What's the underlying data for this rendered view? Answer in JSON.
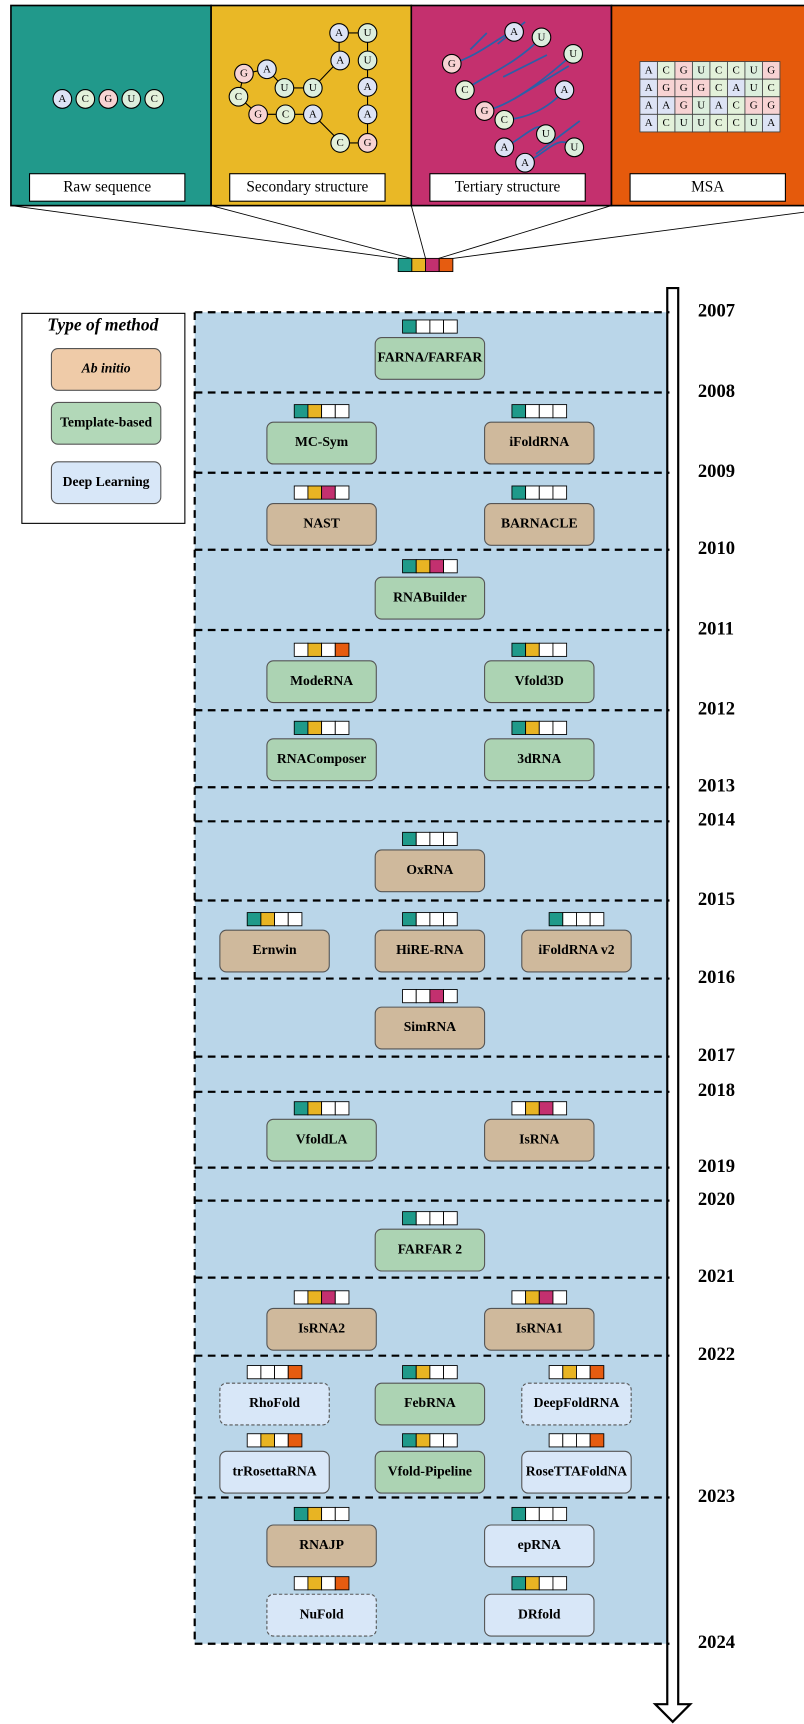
{
  "panels": [
    {
      "label": "Raw sequence",
      "color": "#21998b",
      "letters": [
        "A",
        "C",
        "G",
        "U",
        "C"
      ]
    },
    {
      "label": "Secondary structure",
      "color": "#e9b826",
      "letters": [
        "G",
        "A",
        "C",
        "G",
        "U",
        "U",
        "C",
        "A",
        "A",
        "U",
        "A",
        "U",
        "A",
        "A",
        "C",
        "G"
      ]
    },
    {
      "label": "Tertiary structure",
      "color": "#c4306e",
      "letters": [
        "G",
        "A",
        "U",
        "U",
        "C",
        "A",
        "G",
        "C",
        "A",
        "U",
        "U",
        "A"
      ]
    },
    {
      "label": "MSA",
      "color": "#e55a0c",
      "rows": [
        [
          "A",
          "C",
          "G",
          "U",
          "C",
          "C",
          "U",
          "G"
        ],
        [
          "A",
          "G",
          "G",
          "G",
          "C",
          "A",
          "U",
          "C"
        ],
        [
          "A",
          "A",
          "G",
          "U",
          "A",
          "C",
          "G",
          "G"
        ],
        [
          "A",
          "C",
          "U",
          "U",
          "C",
          "C",
          "U",
          "A"
        ]
      ]
    }
  ],
  "letter_colors": {
    "A": "#dde3f5",
    "C": "#e3f1da",
    "G": "#f7d3d3",
    "U": "#dceedd"
  },
  "input_colors": [
    "#1f9a8a",
    "#e8b423",
    "#c3306f",
    "#e65c10"
  ],
  "legend": {
    "title": "Type of method",
    "items": [
      {
        "label": "Ab initio",
        "color": "#efcba8",
        "box_color": "#cfb99c"
      },
      {
        "label": "Template-based",
        "color": "#b2d8b8",
        "box_color": "#acd3b3"
      },
      {
        "label": "Deep Learning",
        "color": "#d8e7f8",
        "box_color": "#d8e7f8"
      }
    ]
  },
  "years": [
    2007,
    2008,
    2009,
    2010,
    2011,
    2012,
    2013,
    2014,
    2015,
    2016,
    2017,
    2018,
    2019,
    2020,
    2021,
    2022,
    2023,
    2024
  ],
  "rows": [
    [
      {
        "name": "FARNA/FARFAR",
        "type": 1,
        "inputs": [
          true,
          false,
          false,
          false
        ]
      }
    ],
    [
      {
        "name": "MC-Sym",
        "type": 1,
        "inputs": [
          true,
          true,
          false,
          false
        ]
      },
      {
        "name": "iFoldRNA",
        "type": 0,
        "inputs": [
          true,
          false,
          false,
          false
        ]
      }
    ],
    [
      {
        "name": "NAST",
        "type": 0,
        "inputs": [
          false,
          true,
          true,
          false
        ]
      },
      {
        "name": "BARNACLE",
        "type": 0,
        "inputs": [
          true,
          false,
          false,
          false
        ]
      }
    ],
    [
      {
        "name": "RNABuilder",
        "type": 1,
        "inputs": [
          true,
          true,
          true,
          false
        ]
      }
    ],
    [
      {
        "name": "ModeRNA",
        "type": 1,
        "inputs": [
          false,
          true,
          false,
          true
        ]
      },
      {
        "name": "Vfold3D",
        "type": 1,
        "inputs": [
          true,
          true,
          false,
          false
        ]
      }
    ],
    [
      {
        "name": "RNAComposer",
        "type": 1,
        "inputs": [
          true,
          true,
          false,
          false
        ]
      },
      {
        "name": "3dRNA",
        "type": 1,
        "inputs": [
          true,
          true,
          false,
          false
        ]
      }
    ],
    [
      {
        "name": "OxRNA",
        "type": 0,
        "inputs": [
          true,
          false,
          false,
          false
        ]
      }
    ],
    [
      {
        "name": "Ernwin",
        "type": 0,
        "inputs": [
          true,
          true,
          false,
          false
        ]
      },
      {
        "name": "HiRE-RNA",
        "type": 0,
        "inputs": [
          true,
          false,
          false,
          false
        ]
      },
      {
        "name": "iFoldRNA v2",
        "type": 0,
        "inputs": [
          true,
          false,
          false,
          false
        ]
      }
    ],
    [
      {
        "name": "SimRNA",
        "type": 0,
        "inputs": [
          false,
          false,
          true,
          false
        ]
      }
    ],
    [
      {
        "name": "VfoldLA",
        "type": 1,
        "inputs": [
          true,
          true,
          false,
          false
        ]
      },
      {
        "name": "IsRNA",
        "type": 0,
        "inputs": [
          false,
          true,
          true,
          false
        ]
      }
    ],
    [
      {
        "name": "FARFAR 2",
        "type": 1,
        "inputs": [
          true,
          false,
          false,
          false
        ]
      }
    ],
    [
      {
        "name": "IsRNA2",
        "type": 0,
        "inputs": [
          false,
          true,
          true,
          false
        ]
      },
      {
        "name": "IsRNA1",
        "type": 0,
        "inputs": [
          false,
          true,
          true,
          false
        ]
      }
    ],
    [
      {
        "name": "RhoFold",
        "type": 2,
        "dashed": true,
        "inputs": [
          false,
          false,
          false,
          true
        ]
      },
      {
        "name": "FebRNA",
        "type": 1,
        "inputs": [
          true,
          true,
          false,
          false
        ]
      },
      {
        "name": "DeepFoldRNA",
        "type": 2,
        "dashed": true,
        "inputs": [
          false,
          true,
          false,
          true
        ]
      }
    ],
    [
      {
        "name": "trRosettaRNA",
        "type": 2,
        "inputs": [
          false,
          true,
          false,
          true
        ]
      },
      {
        "name": "Vfold-Pipeline",
        "type": 1,
        "inputs": [
          true,
          true,
          false,
          false
        ]
      },
      {
        "name": "RoseTTAFoldNA",
        "type": 2,
        "inputs": [
          false,
          false,
          false,
          true
        ]
      }
    ],
    [
      {
        "name": "RNAJP",
        "type": 0,
        "inputs": [
          true,
          true,
          false,
          false
        ]
      },
      {
        "name": "epRNA",
        "type": 2,
        "inputs": [
          true,
          false,
          false,
          false
        ]
      }
    ],
    [
      {
        "name": "NuFold",
        "type": 2,
        "dashed": true,
        "inputs": [
          false,
          true,
          false,
          true
        ]
      },
      {
        "name": "DRfold",
        "type": 2,
        "inputs": [
          true,
          true,
          false,
          false
        ]
      }
    ]
  ]
}
